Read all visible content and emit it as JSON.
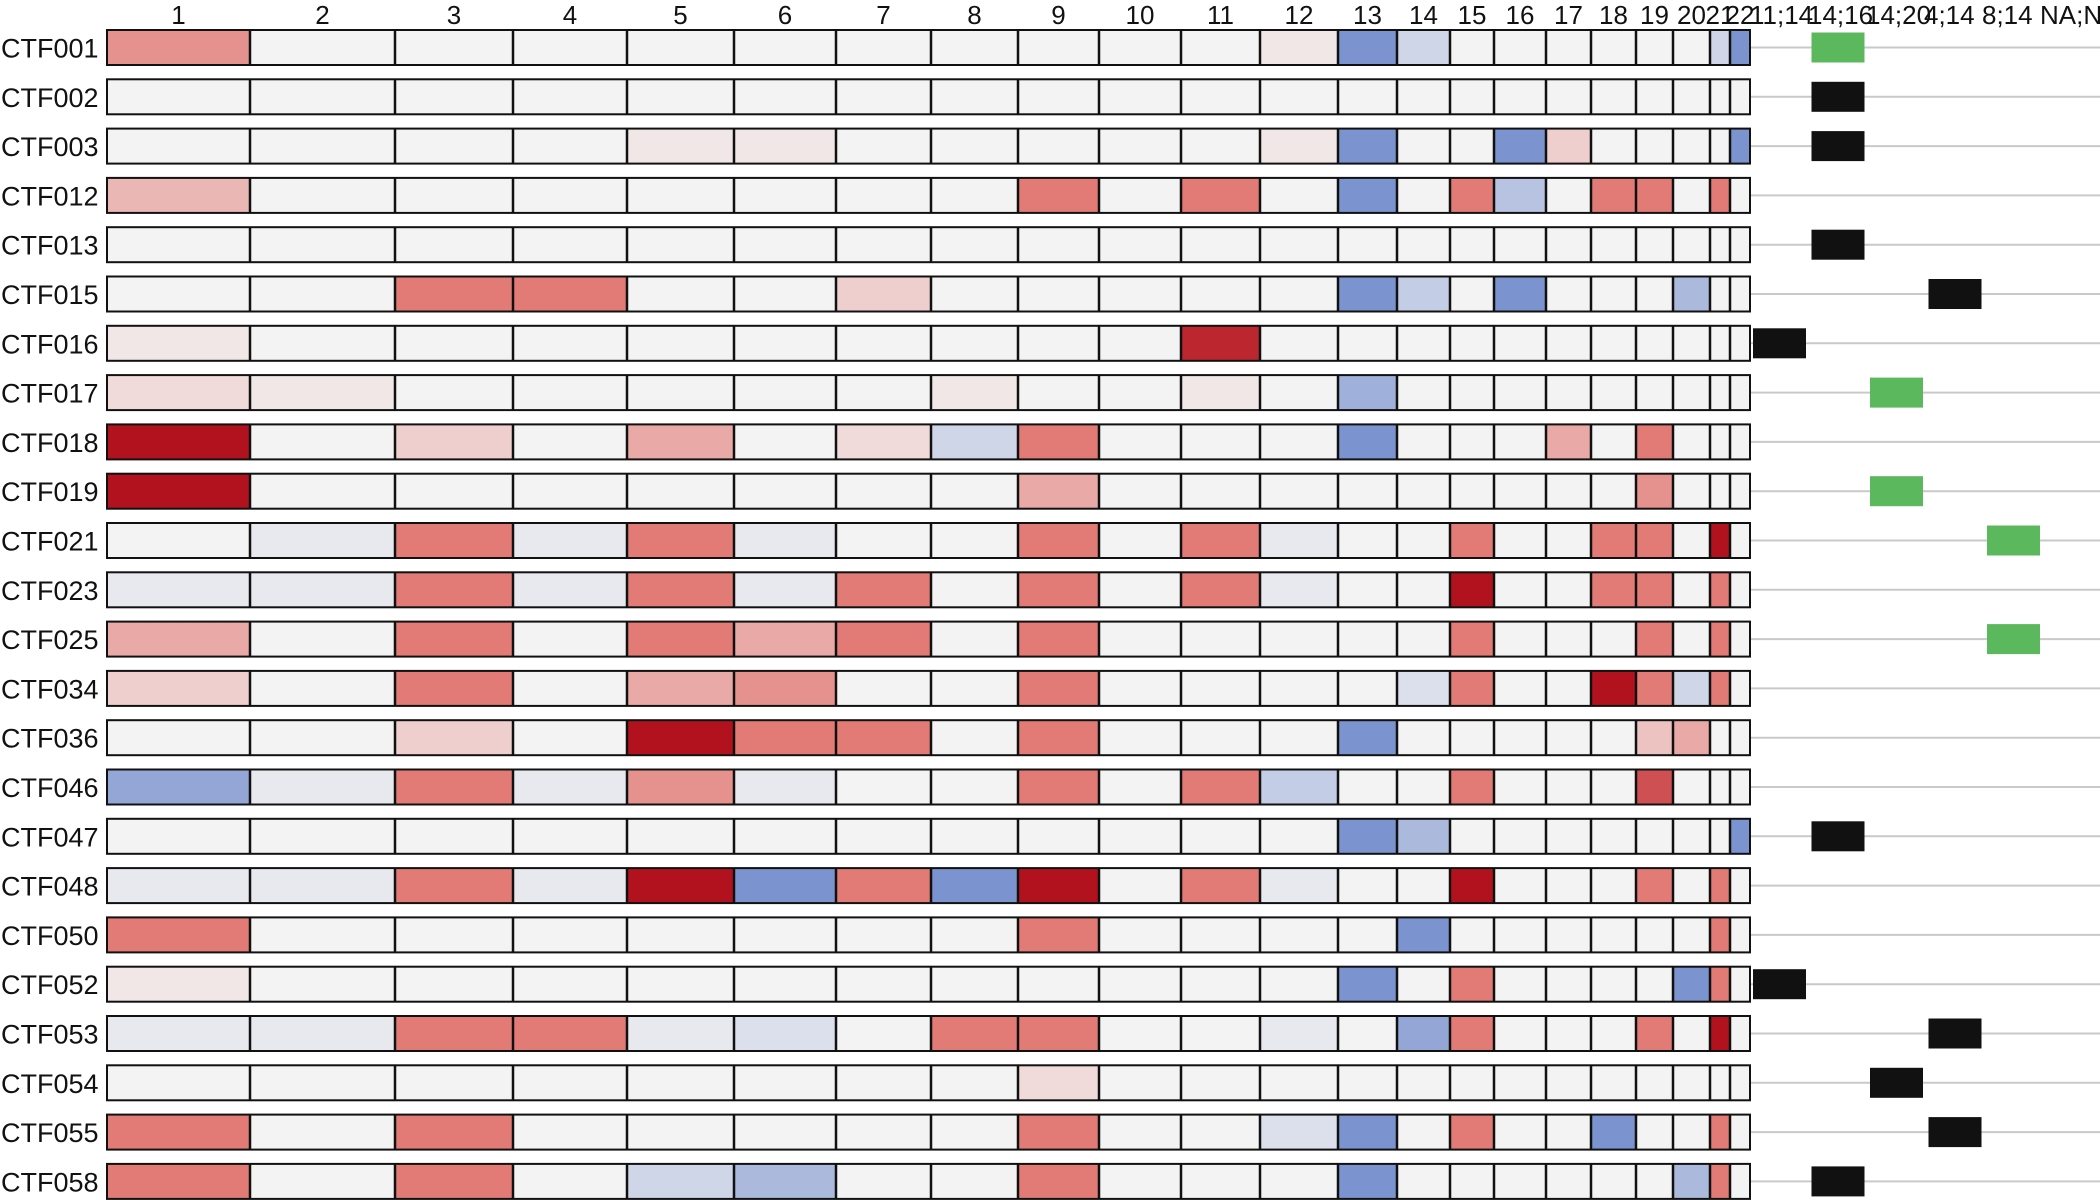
{
  "chart_data": {
    "type": "heatmap",
    "title": "",
    "xlabel": "",
    "ylabel": "",
    "columns": [
      "1",
      "2",
      "3",
      "4",
      "5",
      "6",
      "7",
      "8",
      "9",
      "10",
      "11",
      "12",
      "13",
      "14",
      "15",
      "16",
      "17",
      "18",
      "19",
      "20",
      "21",
      "22"
    ],
    "translocation_columns": [
      "t(11;14)",
      "t(14;16)",
      "t(14;20)",
      "t(4;14)",
      "t(8;14)",
      "NA;NA"
    ],
    "translocation_headers": [
      "11;14",
      "14;16",
      "14;20",
      "4;14",
      "8;14",
      "NA;NA"
    ],
    "color_scale": {
      "loss": "#7b93cf",
      "neutral": "#f3f3f3",
      "gain": "#e27a75",
      "amplification": "#b2121e"
    },
    "marker_colors": {
      "green": "#5cb85c",
      "black": "#111111"
    },
    "samples": [
      "CTF001",
      "CTF002",
      "CTF003",
      "CTF012",
      "CTF013",
      "CTF015",
      "CTF016",
      "CTF017",
      "CTF018",
      "CTF019",
      "CTF021",
      "CTF023",
      "CTF025",
      "CTF034",
      "CTF036",
      "CTF046",
      "CTF047",
      "CTF048",
      "CTF050",
      "CTF052",
      "CTF053",
      "CTF054",
      "CTF055",
      "CTF058"
    ],
    "copy_number": [
      [
        0.8,
        0,
        0,
        0,
        0,
        0,
        0,
        0,
        0,
        0,
        0,
        0.1,
        -1,
        -0.3,
        0,
        0,
        0,
        0,
        0,
        0,
        -0.3,
        -1
      ],
      [
        0,
        0,
        0,
        0,
        0,
        0,
        0,
        0,
        0,
        0,
        0,
        0,
        0,
        0,
        0,
        0,
        0,
        0,
        0,
        0,
        0,
        0
      ],
      [
        0,
        0,
        0,
        0,
        0.1,
        0.1,
        0,
        0,
        0,
        0,
        0,
        0.1,
        -1,
        0,
        0,
        -1,
        0.3,
        0,
        0,
        0,
        0,
        -1
      ],
      [
        0.5,
        0,
        0,
        0,
        0,
        0,
        0,
        0,
        1,
        0,
        1,
        0,
        -1,
        0,
        1,
        -0.5,
        0,
        1,
        1,
        0,
        1,
        0
      ],
      [
        0,
        0,
        0,
        0,
        0,
        0,
        0,
        0,
        0,
        0,
        0,
        0,
        0,
        0,
        0,
        0,
        0,
        0,
        0,
        0,
        0,
        0
      ],
      [
        0,
        0,
        1,
        1,
        0,
        0,
        0.3,
        0,
        0,
        0,
        0,
        0,
        -1,
        -0.4,
        0,
        -1,
        0,
        0,
        0,
        -0.6,
        0,
        0
      ],
      [
        0.1,
        0,
        0,
        0,
        0,
        0,
        0,
        0,
        0,
        0,
        1.8,
        0,
        0,
        0,
        0,
        0,
        0,
        0,
        0,
        0,
        0,
        0
      ],
      [
        0.2,
        0.1,
        0,
        0,
        0,
        0,
        0,
        0.1,
        0,
        0,
        0.1,
        0,
        -0.7,
        0,
        0,
        0,
        0,
        0,
        0,
        0,
        0,
        0
      ],
      [
        2,
        0,
        0.3,
        0,
        0.6,
        0,
        0.2,
        -0.3,
        1,
        0,
        0,
        0,
        -1,
        0,
        0,
        0,
        0.6,
        0,
        1,
        0,
        0,
        0
      ],
      [
        2,
        0,
        0,
        0,
        0,
        0,
        0,
        0,
        0.6,
        0,
        0,
        0,
        0,
        0,
        0,
        0,
        0,
        0,
        0.8,
        0,
        0,
        0
      ],
      [
        0,
        -0.1,
        1,
        -0.1,
        1,
        -0.1,
        0,
        0,
        1,
        0,
        1,
        -0.1,
        0,
        0,
        1,
        0,
        0,
        1,
        1,
        0,
        2,
        0
      ],
      [
        -0.1,
        -0.1,
        1,
        -0.1,
        1,
        -0.1,
        1,
        0,
        1,
        0,
        1,
        -0.1,
        0,
        0,
        2,
        0,
        0,
        1,
        1,
        0,
        1,
        0
      ],
      [
        0.6,
        0,
        1,
        0,
        1,
        0.6,
        1,
        0,
        1,
        0,
        0,
        0,
        0,
        0,
        1,
        0,
        0,
        0,
        1,
        0,
        1,
        0
      ],
      [
        0.3,
        0,
        1,
        0,
        0.6,
        0.8,
        0,
        0,
        1,
        0,
        0,
        0,
        0,
        -0.2,
        1,
        0,
        0,
        2,
        1,
        -0.3,
        1,
        0
      ],
      [
        0,
        0,
        0.3,
        0,
        2,
        1,
        1,
        0,
        1,
        0,
        0,
        0,
        -1,
        0,
        0,
        0,
        0,
        0,
        0.4,
        0.6,
        0,
        0
      ],
      [
        -0.8,
        -0.1,
        1,
        -0.1,
        0.8,
        -0.1,
        0,
        0,
        1,
        0,
        1,
        -0.4,
        0,
        0,
        1,
        0,
        0,
        0,
        1.4,
        0,
        0,
        0
      ],
      [
        0,
        0,
        0,
        0,
        0,
        0,
        0,
        0,
        0,
        0,
        0,
        0,
        -1,
        -0.6,
        0,
        0,
        0,
        0,
        0,
        0,
        0,
        -1
      ],
      [
        -0.1,
        -0.1,
        1,
        -0.1,
        2,
        -1,
        1,
        -1,
        2,
        0,
        1,
        -0.1,
        0,
        0,
        2,
        0,
        0,
        0,
        1,
        0,
        1,
        0
      ],
      [
        1,
        0,
        0,
        0,
        0,
        0,
        0,
        0,
        1,
        0,
        0,
        0,
        0,
        -1,
        0,
        0,
        0,
        0,
        0,
        0,
        1,
        0
      ],
      [
        0.1,
        0,
        0,
        0,
        0,
        0,
        0,
        0,
        0,
        0,
        0,
        0,
        -1,
        0,
        1,
        0,
        0,
        0,
        0,
        -1,
        1,
        0
      ],
      [
        -0.1,
        -0.1,
        1,
        1,
        -0.1,
        -0.2,
        0,
        1,
        1,
        0,
        0,
        -0.1,
        0,
        -0.8,
        1,
        0,
        0,
        0,
        1,
        0,
        2,
        0
      ],
      [
        0,
        0,
        0,
        0,
        0,
        0,
        0,
        0,
        0.2,
        0,
        0,
        0,
        0,
        0,
        0,
        0,
        0,
        0,
        0,
        0,
        0,
        0
      ],
      [
        1,
        0,
        1,
        0,
        0,
        0,
        0,
        0,
        1,
        0,
        0,
        -0.2,
        -1,
        0,
        1,
        0,
        0,
        -1,
        0,
        0,
        1,
        0
      ],
      [
        1,
        0,
        1,
        0,
        -0.3,
        -0.6,
        0,
        0,
        1,
        0,
        0,
        0,
        -1,
        0,
        0,
        0,
        0,
        0,
        0,
        -0.6,
        1,
        0
      ]
    ],
    "translocations": [
      {
        "sample": "CTF001",
        "column": "t(14;16)",
        "color": "green"
      },
      {
        "sample": "CTF002",
        "column": "t(14;16)",
        "color": "black"
      },
      {
        "sample": "CTF003",
        "column": "t(14;16)",
        "color": "black"
      },
      {
        "sample": "CTF013",
        "column": "t(14;16)",
        "color": "black"
      },
      {
        "sample": "CTF015",
        "column": "t(4;14)",
        "color": "black"
      },
      {
        "sample": "CTF016",
        "column": "t(11;14)",
        "color": "black"
      },
      {
        "sample": "CTF017",
        "column": "t(14;20)",
        "color": "green"
      },
      {
        "sample": "CTF019",
        "column": "t(14;20)",
        "color": "green"
      },
      {
        "sample": "CTF021",
        "column": "t(8;14)",
        "color": "green"
      },
      {
        "sample": "CTF025",
        "column": "t(8;14)",
        "color": "green"
      },
      {
        "sample": "CTF047",
        "column": "t(14;16)",
        "color": "black"
      },
      {
        "sample": "CTF052",
        "column": "t(11;14)",
        "color": "black"
      },
      {
        "sample": "CTF053",
        "column": "t(4;14)",
        "color": "black"
      },
      {
        "sample": "CTF054",
        "column": "t(14;20)",
        "color": "black"
      },
      {
        "sample": "CTF055",
        "column": "t(4;14)",
        "color": "black"
      },
      {
        "sample": "CTF058",
        "column": "t(14;16)",
        "color": "black"
      }
    ]
  }
}
